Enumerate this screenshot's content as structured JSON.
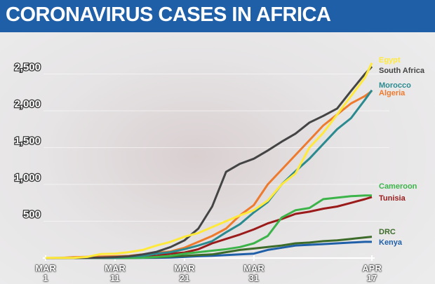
{
  "chart_data": {
    "type": "line",
    "title": "CORONAVIRUS CASES IN AFRICA",
    "x": [
      "MAR 1",
      "MAR 3",
      "MAR 5",
      "MAR 7",
      "MAR 9",
      "MAR 11",
      "MAR 13",
      "MAR 15",
      "MAR 17",
      "MAR 19",
      "MAR 21",
      "MAR 23",
      "MAR 25",
      "MAR 27",
      "MAR 29",
      "MAR 31",
      "APR 2",
      "APR 4",
      "APR 6",
      "APR 8",
      "APR 10",
      "APR 12",
      "APR 14",
      "APR 16",
      "APR 17"
    ],
    "xticks": [
      "MAR 1",
      "MAR 11",
      "MAR 21",
      "MAR 31",
      "APR 17"
    ],
    "ylim": [
      0,
      2800
    ],
    "yticks": [
      500,
      {
        "value": 1000,
        "label": "1,000"
      },
      {
        "value": 1500,
        "label": "1,500"
      },
      {
        "value": 2000,
        "label": "2,000"
      },
      {
        "value": 2500,
        "label": "2,500"
      }
    ],
    "series": [
      {
        "name": "Egypt",
        "color": "#ffe93a",
        "values": [
          2,
          2,
          3,
          15,
          55,
          60,
          80,
          110,
          170,
          220,
          290,
          340,
          420,
          500,
          580,
          650,
          780,
          1000,
          1150,
          1500,
          1700,
          1950,
          2200,
          2450,
          2650
        ]
      },
      {
        "name": "South Africa",
        "color": "#444444",
        "values": [
          0,
          0,
          1,
          2,
          7,
          13,
          24,
          50,
          85,
          150,
          240,
          400,
          700,
          1170,
          1280,
          1350,
          1460,
          1580,
          1690,
          1840,
          1930,
          2030,
          2270,
          2500,
          2600
        ]
      },
      {
        "name": "Morocco",
        "color": "#2a8a8f",
        "values": [
          0,
          1,
          1,
          1,
          2,
          5,
          20,
          30,
          60,
          80,
          120,
          170,
          230,
          350,
          460,
          620,
          760,
          1000,
          1180,
          1350,
          1550,
          1750,
          1900,
          2150,
          2280
        ]
      },
      {
        "name": "Algeria",
        "color": "#ee7a2e",
        "values": [
          0,
          1,
          12,
          17,
          20,
          25,
          30,
          50,
          70,
          90,
          140,
          220,
          300,
          400,
          580,
          720,
          1000,
          1200,
          1400,
          1600,
          1800,
          1950,
          2100,
          2200,
          2270
        ]
      },
      {
        "name": "Cameroon",
        "color": "#3cb44a",
        "values": [
          0,
          0,
          0,
          1,
          2,
          2,
          3,
          5,
          15,
          30,
          60,
          80,
          100,
          120,
          150,
          200,
          300,
          550,
          650,
          680,
          800,
          820,
          840,
          850,
          850
        ]
      },
      {
        "name": "Tunisia",
        "color": "#9b1b1b",
        "values": [
          0,
          1,
          1,
          2,
          2,
          5,
          16,
          20,
          30,
          60,
          75,
          120,
          200,
          260,
          320,
          390,
          470,
          530,
          600,
          630,
          670,
          700,
          750,
          800,
          830
        ]
      },
      {
        "name": "DRC",
        "color": "#3d6b2a",
        "values": [
          0,
          0,
          0,
          0,
          1,
          2,
          3,
          5,
          10,
          20,
          30,
          40,
          50,
          80,
          110,
          130,
          150,
          170,
          200,
          210,
          230,
          240,
          260,
          280,
          290
        ]
      },
      {
        "name": "Kenya",
        "color": "#1f5fa8",
        "values": [
          0,
          0,
          0,
          0,
          0,
          0,
          1,
          3,
          4,
          7,
          15,
          25,
          31,
          40,
          50,
          60,
          110,
          140,
          170,
          180,
          190,
          200,
          210,
          220,
          220
        ]
      }
    ]
  }
}
